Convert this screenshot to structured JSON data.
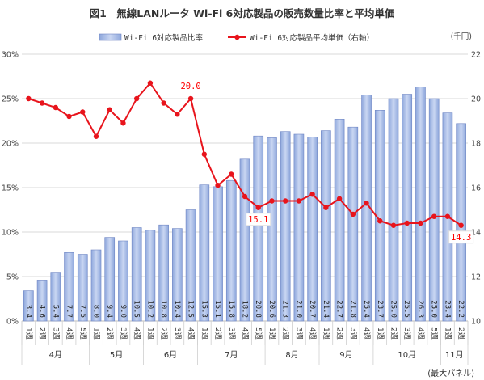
{
  "chart_data": {
    "type": "bar",
    "title": "図1　無線LANルータ Wi-Fi 6対応製品の販売数量比率と平均単価",
    "source_note": "(最大パネル)",
    "right_axis_unit": "(千円)",
    "legend": {
      "bar": "Wi-Fi 6対応製品比率",
      "line": "Wi-Fi 6対応製品平均単価（右軸）"
    },
    "left_axis": {
      "min": 0,
      "max": 30,
      "ticks": [
        "0%",
        "5%",
        "10%",
        "15%",
        "20%",
        "25%",
        "30%"
      ]
    },
    "right_axis": {
      "min": 10,
      "max": 22,
      "ticks": [
        "10",
        "12",
        "14",
        "16",
        "18",
        "20",
        "22"
      ]
    },
    "weeks": [
      "1週",
      "2週",
      "3週",
      "4週",
      "5週",
      "1週",
      "2週",
      "3週",
      "4週",
      "1週",
      "2週",
      "3週",
      "4週",
      "1週",
      "2週",
      "3週",
      "4週",
      "5週",
      "1週",
      "2週",
      "3週",
      "4週",
      "1週",
      "2週",
      "3週",
      "4週",
      "1週",
      "2週",
      "3週",
      "4週",
      "5週",
      "1週",
      "2週"
    ],
    "months": [
      {
        "label": "4月",
        "span": 5
      },
      {
        "label": "5月",
        "span": 4
      },
      {
        "label": "6月",
        "span": 4
      },
      {
        "label": "7月",
        "span": 5
      },
      {
        "label": "8月",
        "span": 4
      },
      {
        "label": "9月",
        "span": 4
      },
      {
        "label": "10月",
        "span": 5
      },
      {
        "label": "11月",
        "span": 2
      }
    ],
    "series": [
      {
        "name": "Wi-Fi 6対応製品比率",
        "kind": "bar",
        "values": [
          3.4,
          4.6,
          5.4,
          7.7,
          7.5,
          8.0,
          9.4,
          9.0,
          10.5,
          10.2,
          10.8,
          10.4,
          12.5,
          15.3,
          15.1,
          15.8,
          18.2,
          20.8,
          20.6,
          21.3,
          21.0,
          20.7,
          21.4,
          22.7,
          21.8,
          25.4,
          23.7,
          25.0,
          25.5,
          26.3,
          25.0,
          23.4,
          22.2
        ],
        "labels": [
          "3.4",
          "4.6",
          "5.4",
          "7.7",
          "7.5",
          "8.0",
          "9.4",
          "9.0",
          "10.5",
          "10.2",
          "10.8",
          "10.4",
          "12.5",
          "15.3",
          "15.1",
          "15.8",
          "18.2",
          "20.8",
          "20.6",
          "21.3",
          "21.0",
          "20.7",
          "21.4",
          "22.7",
          "21.8",
          "25.4",
          "23.7",
          "25.0",
          "25.5",
          "26.3",
          "25.0",
          "23.4",
          "22.2"
        ]
      },
      {
        "name": "Wi-Fi 6対応製品平均単価（右軸）",
        "kind": "line",
        "values": [
          20.0,
          19.8,
          19.6,
          19.2,
          19.4,
          18.3,
          19.5,
          18.9,
          20.0,
          20.7,
          19.8,
          19.3,
          20.0,
          17.5,
          16.1,
          16.6,
          15.6,
          15.1,
          15.4,
          15.4,
          15.4,
          15.7,
          15.1,
          15.5,
          14.8,
          15.3,
          14.5,
          14.3,
          14.4,
          14.4,
          14.7,
          14.7,
          14.3
        ]
      }
    ],
    "annotations": [
      {
        "index": 12,
        "text": "20.0",
        "boxed": false
      },
      {
        "index": 17,
        "text": "15.1",
        "boxed": true
      },
      {
        "index": 32,
        "text": "14.3",
        "boxed": true
      }
    ],
    "colors": {
      "bar_fill": "#a8bde6",
      "bar_stroke": "#6f86c4",
      "line": "#e8141c",
      "grid": "#d9d9d9"
    }
  }
}
